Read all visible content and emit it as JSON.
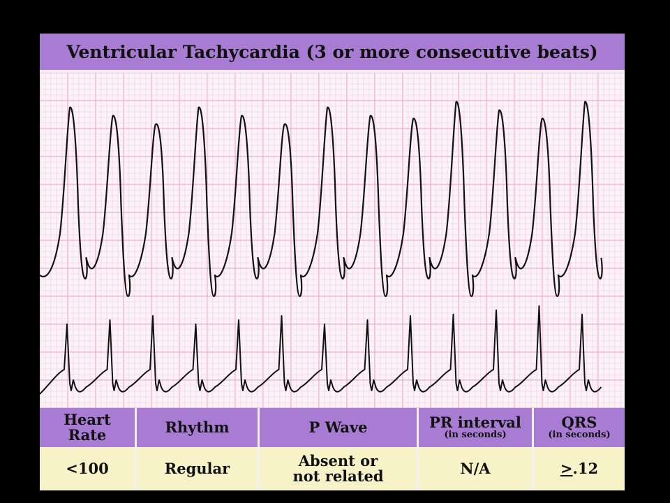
{
  "title": "Ventricular Tachycardia (3 or more consecutive beats)",
  "colors": {
    "background": "#000000",
    "header_purple": "#a77cd2",
    "grid_minor": "#f3c9dd",
    "grid_major": "#e89cc0",
    "value_cell": "#f8f2c8",
    "trace": "#111111"
  },
  "table": {
    "heart_rate": {
      "header": "Heart Rate",
      "value": "<100"
    },
    "rhythm": {
      "header": "Rhythm",
      "value": "Regular"
    },
    "p_wave": {
      "header": "P Wave",
      "value_line1": "Absent or",
      "value_line2": "not related"
    },
    "pr_interval": {
      "header": "PR interval",
      "sub": "(in seconds)",
      "value": "N/A"
    },
    "qrs": {
      "header": "QRS",
      "sub": "(in seconds)",
      "value_symbol": ">",
      "value_rest": ".12"
    }
  },
  "ecg": {
    "lead_top": {
      "beats": 13,
      "rhythm": "regular wide-complex tachycardia"
    },
    "lead_bottom": {
      "beats": 13,
      "rhythm": "regular narrow spikes"
    }
  }
}
